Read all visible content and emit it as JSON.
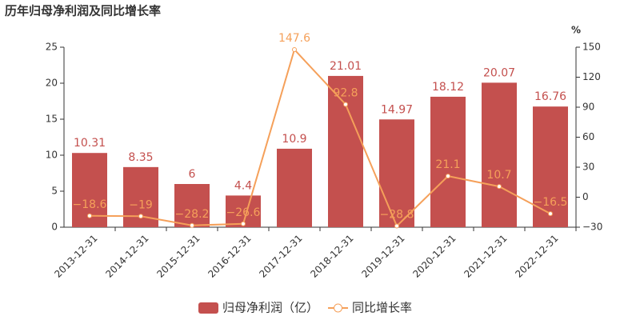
{
  "chart_data": {
    "type": "bar",
    "title": "历年归母净利润及同比增长率",
    "y2_label": "%",
    "categories": [
      "2013-12-31",
      "2014-12-31",
      "2015-12-31",
      "2016-12-31",
      "2017-12-31",
      "2018-12-31",
      "2019-12-31",
      "2020-12-31",
      "2021-12-31",
      "2022-12-31"
    ],
    "series": [
      {
        "name": "归母净利润（亿）",
        "type": "bar",
        "color": "#c4504e",
        "values": [
          10.31,
          8.35,
          6,
          4.4,
          10.9,
          21.01,
          14.97,
          18.12,
          20.07,
          16.76
        ]
      },
      {
        "name": "同比增长率",
        "type": "line",
        "axis": "y2",
        "color": "#f5a05a",
        "values": [
          -18.6,
          -19,
          -28.2,
          -26.6,
          147.6,
          92.8,
          -28.8,
          21.1,
          10.7,
          -16.5
        ],
        "value_labels": [
          "−18.6",
          "−19",
          "−28.2",
          "−26.6",
          "147.6",
          "92.8",
          "−28.8",
          "21.1",
          "10.7",
          "−16.5"
        ]
      }
    ],
    "ylim": [
      0,
      25
    ],
    "yticks": [
      0,
      5,
      10,
      15,
      20,
      25
    ],
    "y2lim": [
      -30,
      150
    ],
    "y2ticks": [
      {
        "value": -30,
        "label": "−30"
      },
      0,
      30,
      60,
      90,
      120,
      150
    ],
    "grid": false,
    "legend": "bottom"
  }
}
